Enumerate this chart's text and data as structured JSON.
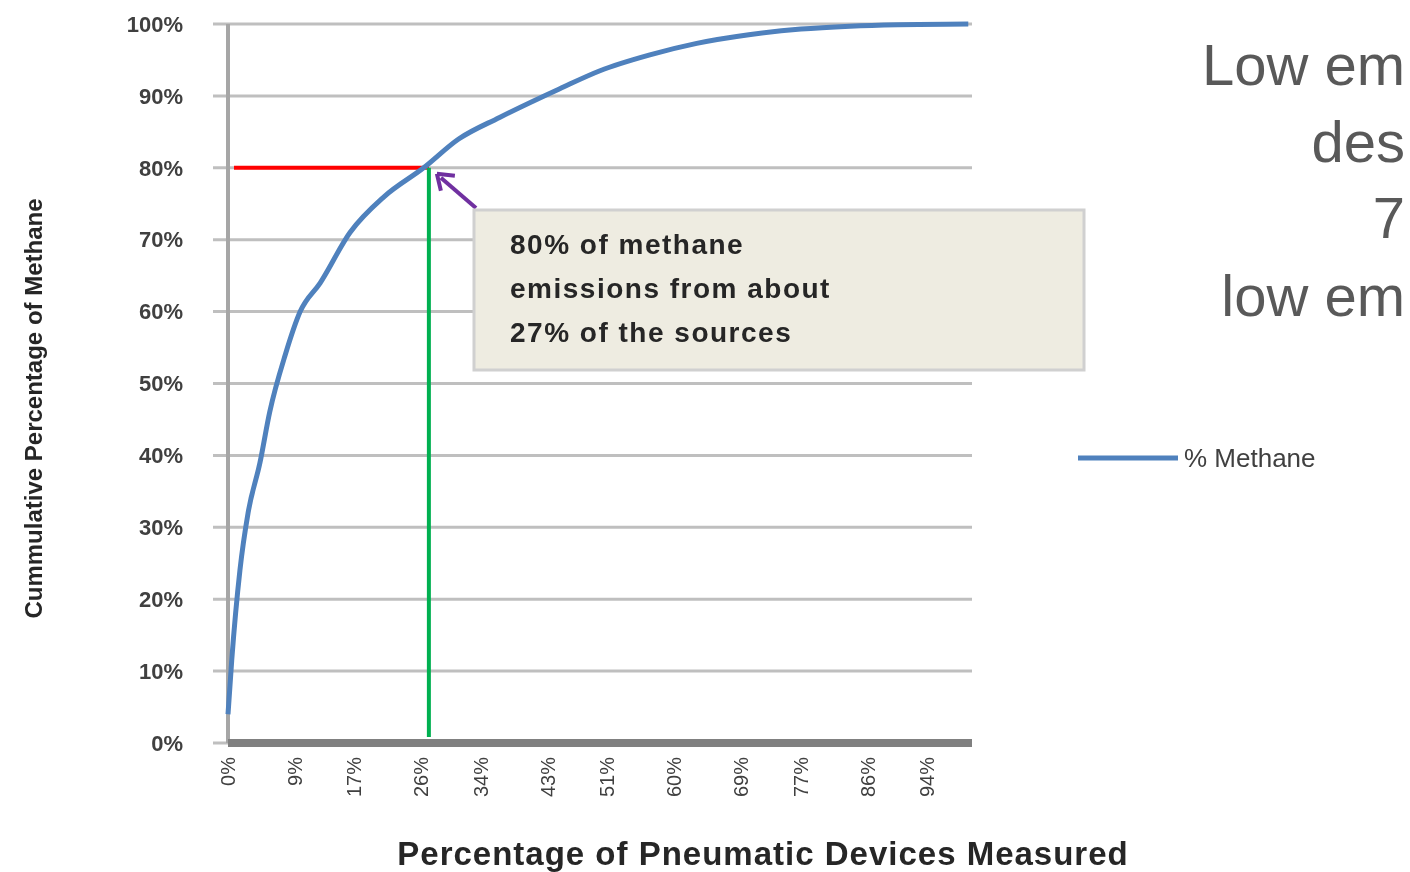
{
  "chart_data": {
    "type": "line",
    "xlabel": "Percentage of Pneumatic Devices Measured",
    "ylabel": "Cummulative Percentage of Methane",
    "xlim": [
      0,
      100
    ],
    "xticks": [
      {
        "value": 0,
        "label": "0%"
      },
      {
        "value": 9,
        "label": "9%"
      },
      {
        "value": 17,
        "label": "17%"
      },
      {
        "value": 26,
        "label": "26%"
      },
      {
        "value": 34,
        "label": "34%"
      },
      {
        "value": 43,
        "label": "43%"
      },
      {
        "value": 51,
        "label": "51%"
      },
      {
        "value": 60,
        "label": "60%"
      },
      {
        "value": 69,
        "label": "69%"
      },
      {
        "value": 77,
        "label": "77%"
      },
      {
        "value": 86,
        "label": "86%"
      },
      {
        "value": 94,
        "label": "94%"
      }
    ],
    "ylim": [
      0,
      100
    ],
    "yticks": [
      {
        "value": 0,
        "label": "0%"
      },
      {
        "value": 10,
        "label": "10%"
      },
      {
        "value": 20,
        "label": "20%"
      },
      {
        "value": 30,
        "label": "30%"
      },
      {
        "value": 40,
        "label": "40%"
      },
      {
        "value": 50,
        "label": "50%"
      },
      {
        "value": 60,
        "label": "60%"
      },
      {
        "value": 70,
        "label": "70%"
      },
      {
        "value": 80,
        "label": "80%"
      },
      {
        "value": 90,
        "label": "90%"
      },
      {
        "value": 100,
        "label": "100%"
      }
    ],
    "grid": "y",
    "legend": "right",
    "marker": "none",
    "line_style": "solid",
    "series": [
      {
        "name": "% Methane",
        "color": "#4f81bd",
        "x": [
          0,
          0.5,
          1.6,
          2.7,
          4.3,
          5.6,
          7.7,
          9.7,
          12.4,
          16.4,
          21,
          26.3,
          31,
          36.5,
          44.6,
          50,
          56.7,
          63,
          70,
          77,
          83.6,
          90,
          99.5
        ],
        "values": [
          4,
          11.5,
          24,
          32,
          39,
          46,
          54,
          60,
          64,
          71,
          76,
          80,
          84,
          87,
          91,
          93.5,
          95.7,
          97.3,
          98.5,
          99.3,
          99.7,
          99.9,
          100
        ]
      }
    ],
    "ref_lines": [
      {
        "axis": "y",
        "value": 80,
        "color": "#ff0000"
      },
      {
        "axis": "x",
        "value": 27,
        "color": "#00b050"
      }
    ],
    "annotations": [
      "80% of methane\nemissions from about\n27% of the sources",
      "Low em",
      "des",
      "7",
      "low em"
    ]
  }
}
